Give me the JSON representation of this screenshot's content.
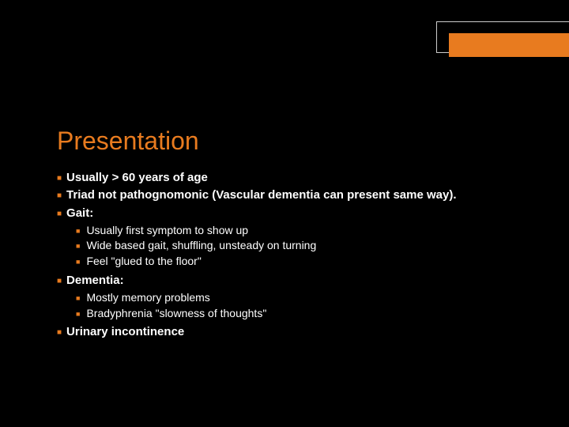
{
  "slide": {
    "title": "Presentation",
    "accent_color": "#e87b1f",
    "background_color": "#000000",
    "text_color": "#ffffff",
    "title_fontsize": 32,
    "body_fontsize": 15,
    "sub_fontsize": 14,
    "bullets": {
      "b1": "Usually > 60 years of age",
      "b2": "Triad not pathognomonic (Vascular dementia can present same way).",
      "b3": "Gait:",
      "b3_subs": {
        "s1": "Usually first symptom to show up",
        "s2": "Wide based gait, shuffling, unsteady on turning",
        "s3": "Feel \"glued to the floor\""
      },
      "b4": "Dementia:",
      "b4_subs": {
        "s1": "Mostly memory problems",
        "s2": "Bradyphrenia \"slowness of thoughts\""
      },
      "b5": "Urinary incontinence"
    }
  }
}
